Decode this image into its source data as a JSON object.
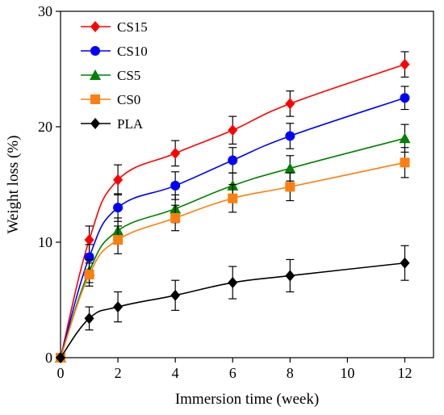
{
  "chart_data": {
    "type": "line",
    "xlabel": "Immersion time (week)",
    "ylabel": "Weight loss (%)",
    "xlim": [
      0,
      13
    ],
    "ylim": [
      0,
      30
    ],
    "x_ticks": [
      0,
      2,
      4,
      6,
      8,
      10,
      12
    ],
    "y_ticks": [
      0,
      10,
      20,
      30
    ],
    "grid": false,
    "legend_position": "top-left",
    "x": [
      0,
      1,
      2,
      4,
      6,
      8,
      12
    ],
    "series": [
      {
        "name": "CS15",
        "color": "#ff0000",
        "marker": "diamond",
        "values": [
          0,
          10.2,
          15.4,
          17.7,
          19.7,
          22.0,
          25.4
        ],
        "errors": [
          0,
          1.2,
          1.3,
          1.1,
          1.2,
          1.1,
          1.1
        ]
      },
      {
        "name": "CS10",
        "color": "#0000ff",
        "marker": "circle",
        "values": [
          0,
          8.7,
          13.0,
          14.9,
          17.1,
          19.2,
          22.5
        ],
        "errors": [
          0,
          1.1,
          1.2,
          1.2,
          1.1,
          1.1,
          1.0
        ]
      },
      {
        "name": "CS5",
        "color": "#008000",
        "marker": "triangle",
        "values": [
          0,
          7.5,
          11.0,
          12.9,
          14.9,
          16.4,
          19.0
        ],
        "errors": [
          0,
          1.0,
          1.1,
          1.2,
          1.1,
          1.1,
          1.2
        ]
      },
      {
        "name": "CS0",
        "color": "#ff7f0e",
        "marker": "square",
        "values": [
          0,
          7.2,
          10.2,
          12.1,
          13.8,
          14.8,
          16.9
        ],
        "errors": [
          0,
          1.0,
          1.2,
          1.1,
          1.2,
          1.2,
          1.3
        ]
      },
      {
        "name": "PLA",
        "color": "#000000",
        "marker": "diamond",
        "values": [
          0,
          3.4,
          4.4,
          5.4,
          6.5,
          7.1,
          8.2
        ],
        "errors": [
          0,
          1.0,
          1.3,
          1.3,
          1.4,
          1.4,
          1.5
        ]
      }
    ]
  }
}
